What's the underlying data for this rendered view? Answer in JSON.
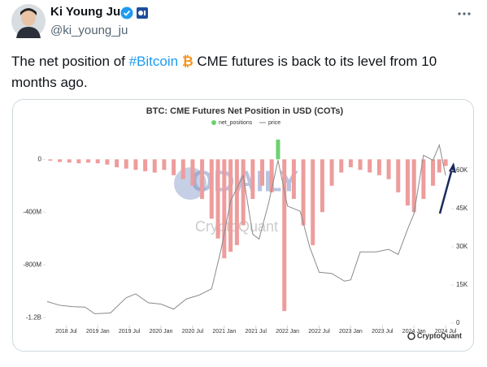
{
  "author": {
    "name": "Ki Young Ju",
    "handle": "@ki_young_ju"
  },
  "tweet": {
    "before": "The net position of ",
    "hashtag": "#Bitcoin",
    "emoji": "₿",
    "after": " CME futures is back to its level from 10 months ago."
  },
  "chart": {
    "type": "bar-line",
    "title": "BTC: CME Futures Net Position in USD (COTs)",
    "watermarks": [
      "ODAILY",
      "CryptoQuant"
    ],
    "brand": "CryptoQuant",
    "xlim": [
      2018.2,
      2024.55
    ],
    "xticks": [
      {
        "value": 2018.5,
        "label": "2018 Jul"
      },
      {
        "value": 2019.0,
        "label": "2019 Jan"
      },
      {
        "value": 2019.5,
        "label": "2019 Jul"
      },
      {
        "value": 2020.0,
        "label": "2020 Jan"
      },
      {
        "value": 2020.5,
        "label": "2020 Jul"
      },
      {
        "value": 2021.0,
        "label": "2021 Jan"
      },
      {
        "value": 2021.5,
        "label": "2021 Jul"
      },
      {
        "value": 2022.0,
        "label": "2022 Jan"
      },
      {
        "value": 2022.5,
        "label": "2022 Jul"
      },
      {
        "value": 2023.0,
        "label": "2023 Jan"
      },
      {
        "value": 2023.5,
        "label": "2023 Jul"
      },
      {
        "value": 2024.0,
        "label": "2024 Jan"
      },
      {
        "value": 2024.5,
        "label": "2024 Jul"
      }
    ],
    "ylim": [
      -1260000000,
      180000000
    ],
    "yticks": [
      0,
      {
        "value": -400000000,
        "label": "-400M"
      },
      {
        "value": -800000000,
        "label": "-800M"
      },
      {
        "value": -1200000000,
        "label": "-1.2B"
      }
    ],
    "y2lim": [
      -960,
      73700
    ],
    "y2ticks": [
      0,
      {
        "value": 15000,
        "label": "15K"
      },
      {
        "value": 30000,
        "label": "30K"
      },
      {
        "value": 45000,
        "label": "45K"
      },
      {
        "value": 60000,
        "label": "60K"
      }
    ],
    "series": [
      {
        "name": "net_positions",
        "color": "#ee9c9c",
        "positive_color": "#6fd06f",
        "x": [
          2018.25,
          2018.4,
          2018.55,
          2018.7,
          2018.85,
          2019.0,
          2019.15,
          2019.3,
          2019.45,
          2019.6,
          2019.75,
          2019.9,
          2020.05,
          2020.2,
          2020.35,
          2020.5,
          2020.65,
          2020.8,
          2020.9,
          2021.0,
          2021.1,
          2021.2,
          2021.3,
          2021.45,
          2021.6,
          2021.75,
          2021.85,
          2021.95,
          2022.1,
          2022.25,
          2022.4,
          2022.55,
          2022.7,
          2022.85,
          2023.0,
          2023.15,
          2023.3,
          2023.45,
          2023.6,
          2023.75,
          2023.9,
          2024.0,
          2024.15,
          2024.3,
          2024.4,
          2024.5
        ],
        "values": [
          -10000000,
          -20000000,
          -25000000,
          -30000000,
          -25000000,
          -30000000,
          -40000000,
          -60000000,
          -70000000,
          -80000000,
          -90000000,
          -100000000,
          -80000000,
          -120000000,
          -150000000,
          -200000000,
          -300000000,
          -450000000,
          -600000000,
          -750000000,
          -700000000,
          -650000000,
          -500000000,
          -300000000,
          -200000000,
          -250000000,
          150000000,
          -1150000000,
          -300000000,
          -500000000,
          -650000000,
          -400000000,
          -200000000,
          -100000000,
          -60000000,
          -80000000,
          -100000000,
          -120000000,
          -150000000,
          -250000000,
          -350000000,
          -400000000,
          -300000000,
          -200000000,
          -100000000,
          -50000000
        ]
      },
      {
        "name": "price",
        "color": "#8a8a8a",
        "axis": "y2",
        "x": [
          2018.2,
          2018.4,
          2018.6,
          2018.8,
          2018.95,
          2019.2,
          2019.45,
          2019.6,
          2019.8,
          2020.0,
          2020.2,
          2020.4,
          2020.6,
          2020.8,
          2020.95,
          2021.1,
          2021.3,
          2021.45,
          2021.55,
          2021.7,
          2021.85,
          2022.0,
          2022.2,
          2022.35,
          2022.5,
          2022.7,
          2022.9,
          2023.0,
          2023.15,
          2023.4,
          2023.6,
          2023.75,
          2023.9,
          2024.0,
          2024.15,
          2024.3,
          2024.4,
          2024.5
        ],
        "values": [
          8500,
          7000,
          6500,
          6300,
          3700,
          4000,
          10000,
          11500,
          8000,
          7500,
          5500,
          9500,
          11000,
          13500,
          29000,
          48000,
          58000,
          35000,
          33000,
          47000,
          64000,
          46000,
          44000,
          30000,
          20000,
          19500,
          16500,
          17000,
          28000,
          28000,
          29000,
          27000,
          37000,
          43000,
          66000,
          64000,
          70000,
          58000
        ]
      }
    ]
  }
}
